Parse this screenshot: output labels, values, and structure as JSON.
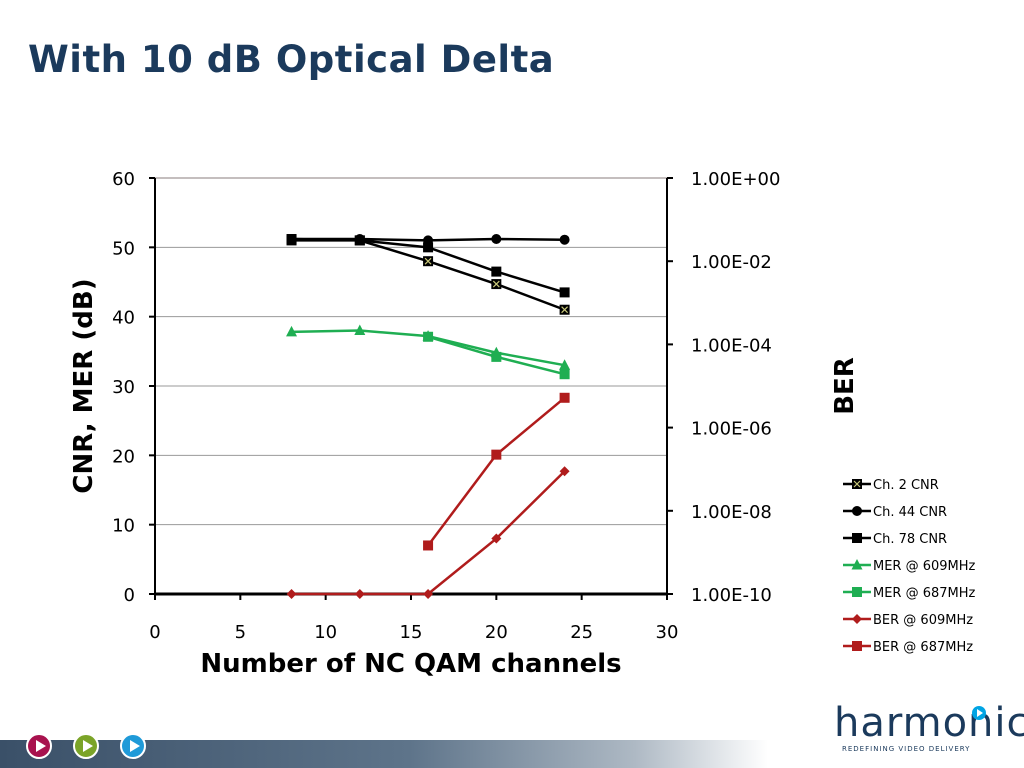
{
  "slide": {
    "title": "With 10 dB Optical Delta"
  },
  "footer": {
    "nav_buttons": [
      {
        "icon": "play-icon",
        "color": "#a8124e"
      },
      {
        "icon": "play-icon",
        "color": "#7ba428"
      },
      {
        "icon": "play-icon",
        "color": "#1f9ad8"
      }
    ]
  },
  "logo": {
    "text": "harmonic",
    "tagline": "REDEFINING VIDEO DELIVERY",
    "accent": "#00a4e4"
  },
  "chart_data": {
    "type": "line",
    "xlabel": "Number of NC QAM channels",
    "ylabel": "CNR, MER (dB)",
    "y2label": "BER",
    "xlim": [
      0,
      30
    ],
    "xticks": [
      "0",
      "5",
      "10",
      "15",
      "20",
      "25",
      "30"
    ],
    "ylim": [
      0,
      60
    ],
    "yticks": [
      "0",
      "10",
      "20",
      "30",
      "40",
      "50",
      "60"
    ],
    "y2_scale": "log",
    "y2ticks": [
      "1.00E-10",
      "1.00E-08",
      "1.00E-06",
      "1.00E-04",
      "1.00E-02",
      "1.00E+00"
    ],
    "grid": true,
    "legend_position": "right",
    "series": [
      {
        "name": "Ch. 2 CNR",
        "axis": "left",
        "color": "#000000",
        "marker": "square-x",
        "x": [
          8,
          12,
          16,
          20,
          24
        ],
        "y": [
          51,
          51,
          48,
          44.7,
          41
        ]
      },
      {
        "name": "Ch. 44 CNR",
        "axis": "left",
        "color": "#000000",
        "marker": "circle",
        "x": [
          8,
          12,
          16,
          20,
          24
        ],
        "y": [
          51.2,
          51.2,
          51,
          51.2,
          51.1
        ]
      },
      {
        "name": "Ch. 78 CNR",
        "axis": "left",
        "color": "#000000",
        "marker": "square",
        "x": [
          8,
          12,
          16,
          20,
          24
        ],
        "y": [
          51.2,
          51,
          50,
          46.5,
          43.5
        ]
      },
      {
        "name": "MER @ 609MHz",
        "axis": "left",
        "color": "#1fae52",
        "marker": "triangle",
        "x": [
          8,
          12,
          16,
          20,
          24
        ],
        "y": [
          37.8,
          38,
          37.2,
          34.8,
          33
        ]
      },
      {
        "name": "MER @ 687MHz",
        "axis": "left",
        "color": "#1fae52",
        "marker": "square",
        "x": [
          16,
          20,
          24
        ],
        "y": [
          37.1,
          34.2,
          31.7
        ]
      },
      {
        "name": "BER @ 609MHz",
        "axis": "left",
        "color": "#b01c1c",
        "marker": "diamond",
        "x": [
          8,
          12,
          16,
          20,
          24
        ],
        "y": [
          0,
          0,
          0,
          8,
          17.7
        ]
      },
      {
        "name": "BER @ 687MHz",
        "axis": "left",
        "color": "#b01c1c",
        "marker": "square",
        "x": [
          16,
          20,
          24
        ],
        "y": [
          7,
          20.1,
          28.3
        ]
      }
    ]
  }
}
